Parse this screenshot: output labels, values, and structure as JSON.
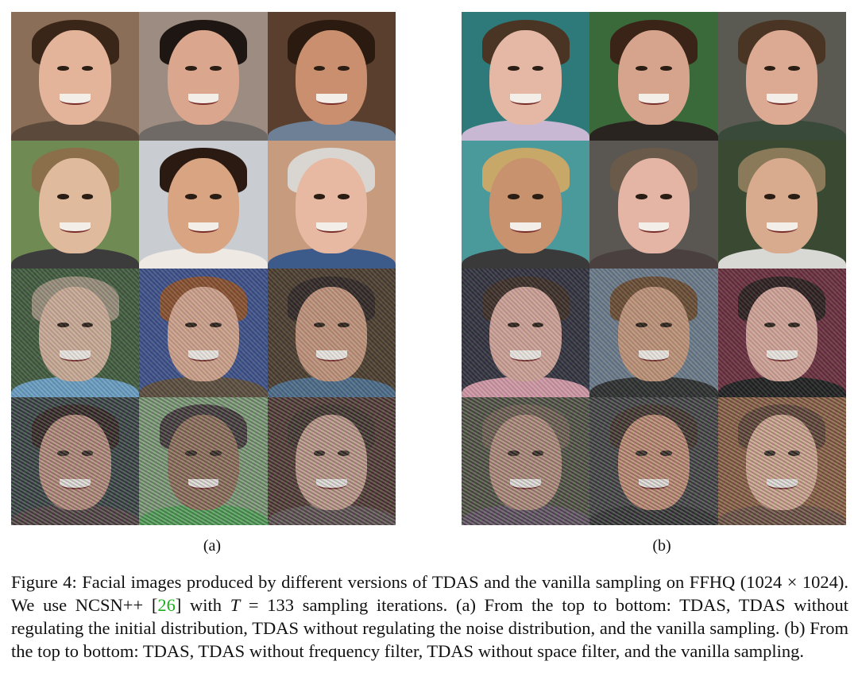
{
  "panels": [
    {
      "id": "a",
      "label": "(a)",
      "rows": [
        [
          {
            "bg": "#8a6e58",
            "skin": "#e3b39a",
            "hair": "#3a2618",
            "shirt": "#5b4a3c",
            "noise": ""
          },
          {
            "bg": "#9c8c82",
            "skin": "#dba68e",
            "hair": "#1e1612",
            "shirt": "#6f6a66",
            "noise": ""
          },
          {
            "bg": "#5a3f2e",
            "skin": "#c98f6e",
            "hair": "#2a1a10",
            "shirt": "#6e8096",
            "noise": ""
          }
        ],
        [
          {
            "bg": "#6f8a52",
            "skin": "#e0ba9c",
            "hair": "#8b6e4a",
            "shirt": "#3c3c3c",
            "noise": ""
          },
          {
            "bg": "#c9cdd2",
            "skin": "#d9a482",
            "hair": "#2a1a12",
            "shirt": "#efe9e4",
            "noise": ""
          },
          {
            "bg": "#c79b7e",
            "skin": "#e8b9a2",
            "hair": "#d9d6d2",
            "shirt": "#3d5b8a",
            "noise": ""
          }
        ],
        [
          {
            "bg": "#3f5a3a",
            "skin": "#d0ae98",
            "hair": "#9a8f7a",
            "shirt": "#6aa0c8",
            "noise": "noisy"
          },
          {
            "bg": "#3a4e8a",
            "skin": "#d4a48c",
            "hair": "#8a4e2a",
            "shirt": "#5a4a3a",
            "noise": "noisy"
          },
          {
            "bg": "#4a3a2a",
            "skin": "#c4937a",
            "hair": "#2e2420",
            "shirt": "#4a6a8a",
            "noise": "noisy"
          }
        ],
        [
          {
            "bg": "#2f3a3a",
            "skin": "#b98a78",
            "hair": "#2a1c18",
            "shirt": "#4a3a3a",
            "noise": "very-noisy"
          },
          {
            "bg": "#7a9a72",
            "skin": "#8e6a52",
            "hair": "#3a3030",
            "shirt": "#4aa050",
            "noise": "very-noisy"
          },
          {
            "bg": "#4a3028",
            "skin": "#c49a88",
            "hair": "#3a2a22",
            "shirt": "#5a4a4a",
            "noise": "very-noisy"
          }
        ]
      ]
    },
    {
      "id": "b",
      "label": "(b)",
      "rows": [
        [
          {
            "bg": "#2e7a7a",
            "skin": "#e4b8a4",
            "hair": "#4a3424",
            "shirt": "#c8b8d4",
            "noise": ""
          },
          {
            "bg": "#3a6a3a",
            "skin": "#d6a48c",
            "hair": "#3a2418",
            "shirt": "#2a2420",
            "noise": ""
          },
          {
            "bg": "#5a5a52",
            "skin": "#dcaa92",
            "hair": "#4a3424",
            "shirt": "#3a4a3a",
            "noise": ""
          }
        ],
        [
          {
            "bg": "#4a9a9c",
            "skin": "#c8926e",
            "hair": "#c8a868",
            "shirt": "#3a3a3a",
            "noise": ""
          },
          {
            "bg": "#5a5652",
            "skin": "#e4b4a4",
            "hair": "#6a5a4a",
            "shirt": "#4a4040",
            "noise": ""
          },
          {
            "bg": "#3a4a32",
            "skin": "#d8aa8e",
            "hair": "#8a7a5a",
            "shirt": "#d8d8d4",
            "noise": ""
          }
        ],
        [
          {
            "bg": "#2e2e3a",
            "skin": "#d4a498",
            "hair": "#3a2a22",
            "shirt": "#d89aa8",
            "noise": "noisy"
          },
          {
            "bg": "#6a7a8a",
            "skin": "#c49478",
            "hair": "#6a4a30",
            "shirt": "#2a2a2a",
            "noise": "noisy"
          },
          {
            "bg": "#6a2a3a",
            "skin": "#d8a69a",
            "hair": "#2a1a1a",
            "shirt": "#1a1a1a",
            "noise": "noisy"
          }
        ],
        [
          {
            "bg": "#4a4a3a",
            "skin": "#b48a78",
            "hair": "#6a5a4a",
            "shirt": "#5a4a5a",
            "noise": "very-noisy"
          },
          {
            "bg": "#3a3a3a",
            "skin": "#c48a6e",
            "hair": "#3a2a22",
            "shirt": "#2a2a2a",
            "noise": "very-noisy"
          },
          {
            "bg": "#8a5a3a",
            "skin": "#d8a88e",
            "hair": "#5a3a2a",
            "shirt": "#6a4a3a",
            "noise": "very-noisy"
          }
        ]
      ]
    }
  ],
  "caption": {
    "figure_label": "Figure 4:",
    "line1": " Facial images produced by different versions of TDAS and the vanilla sampling on FFHQ (1024 × 1024).  We use NCSN++ [",
    "ref": "26",
    "line2a": "] with ",
    "var_T": "T",
    "line2b": " = 133 sampling iterations.  (a) From the top to bottom: TDAS, TDAS without regulating the initial distribution, TDAS without regulating the noise distribution, and the vanilla sampling. (b) From the top to bottom: TDAS, TDAS without frequency filter, TDAS without space filter, and the vanilla sampling."
  }
}
